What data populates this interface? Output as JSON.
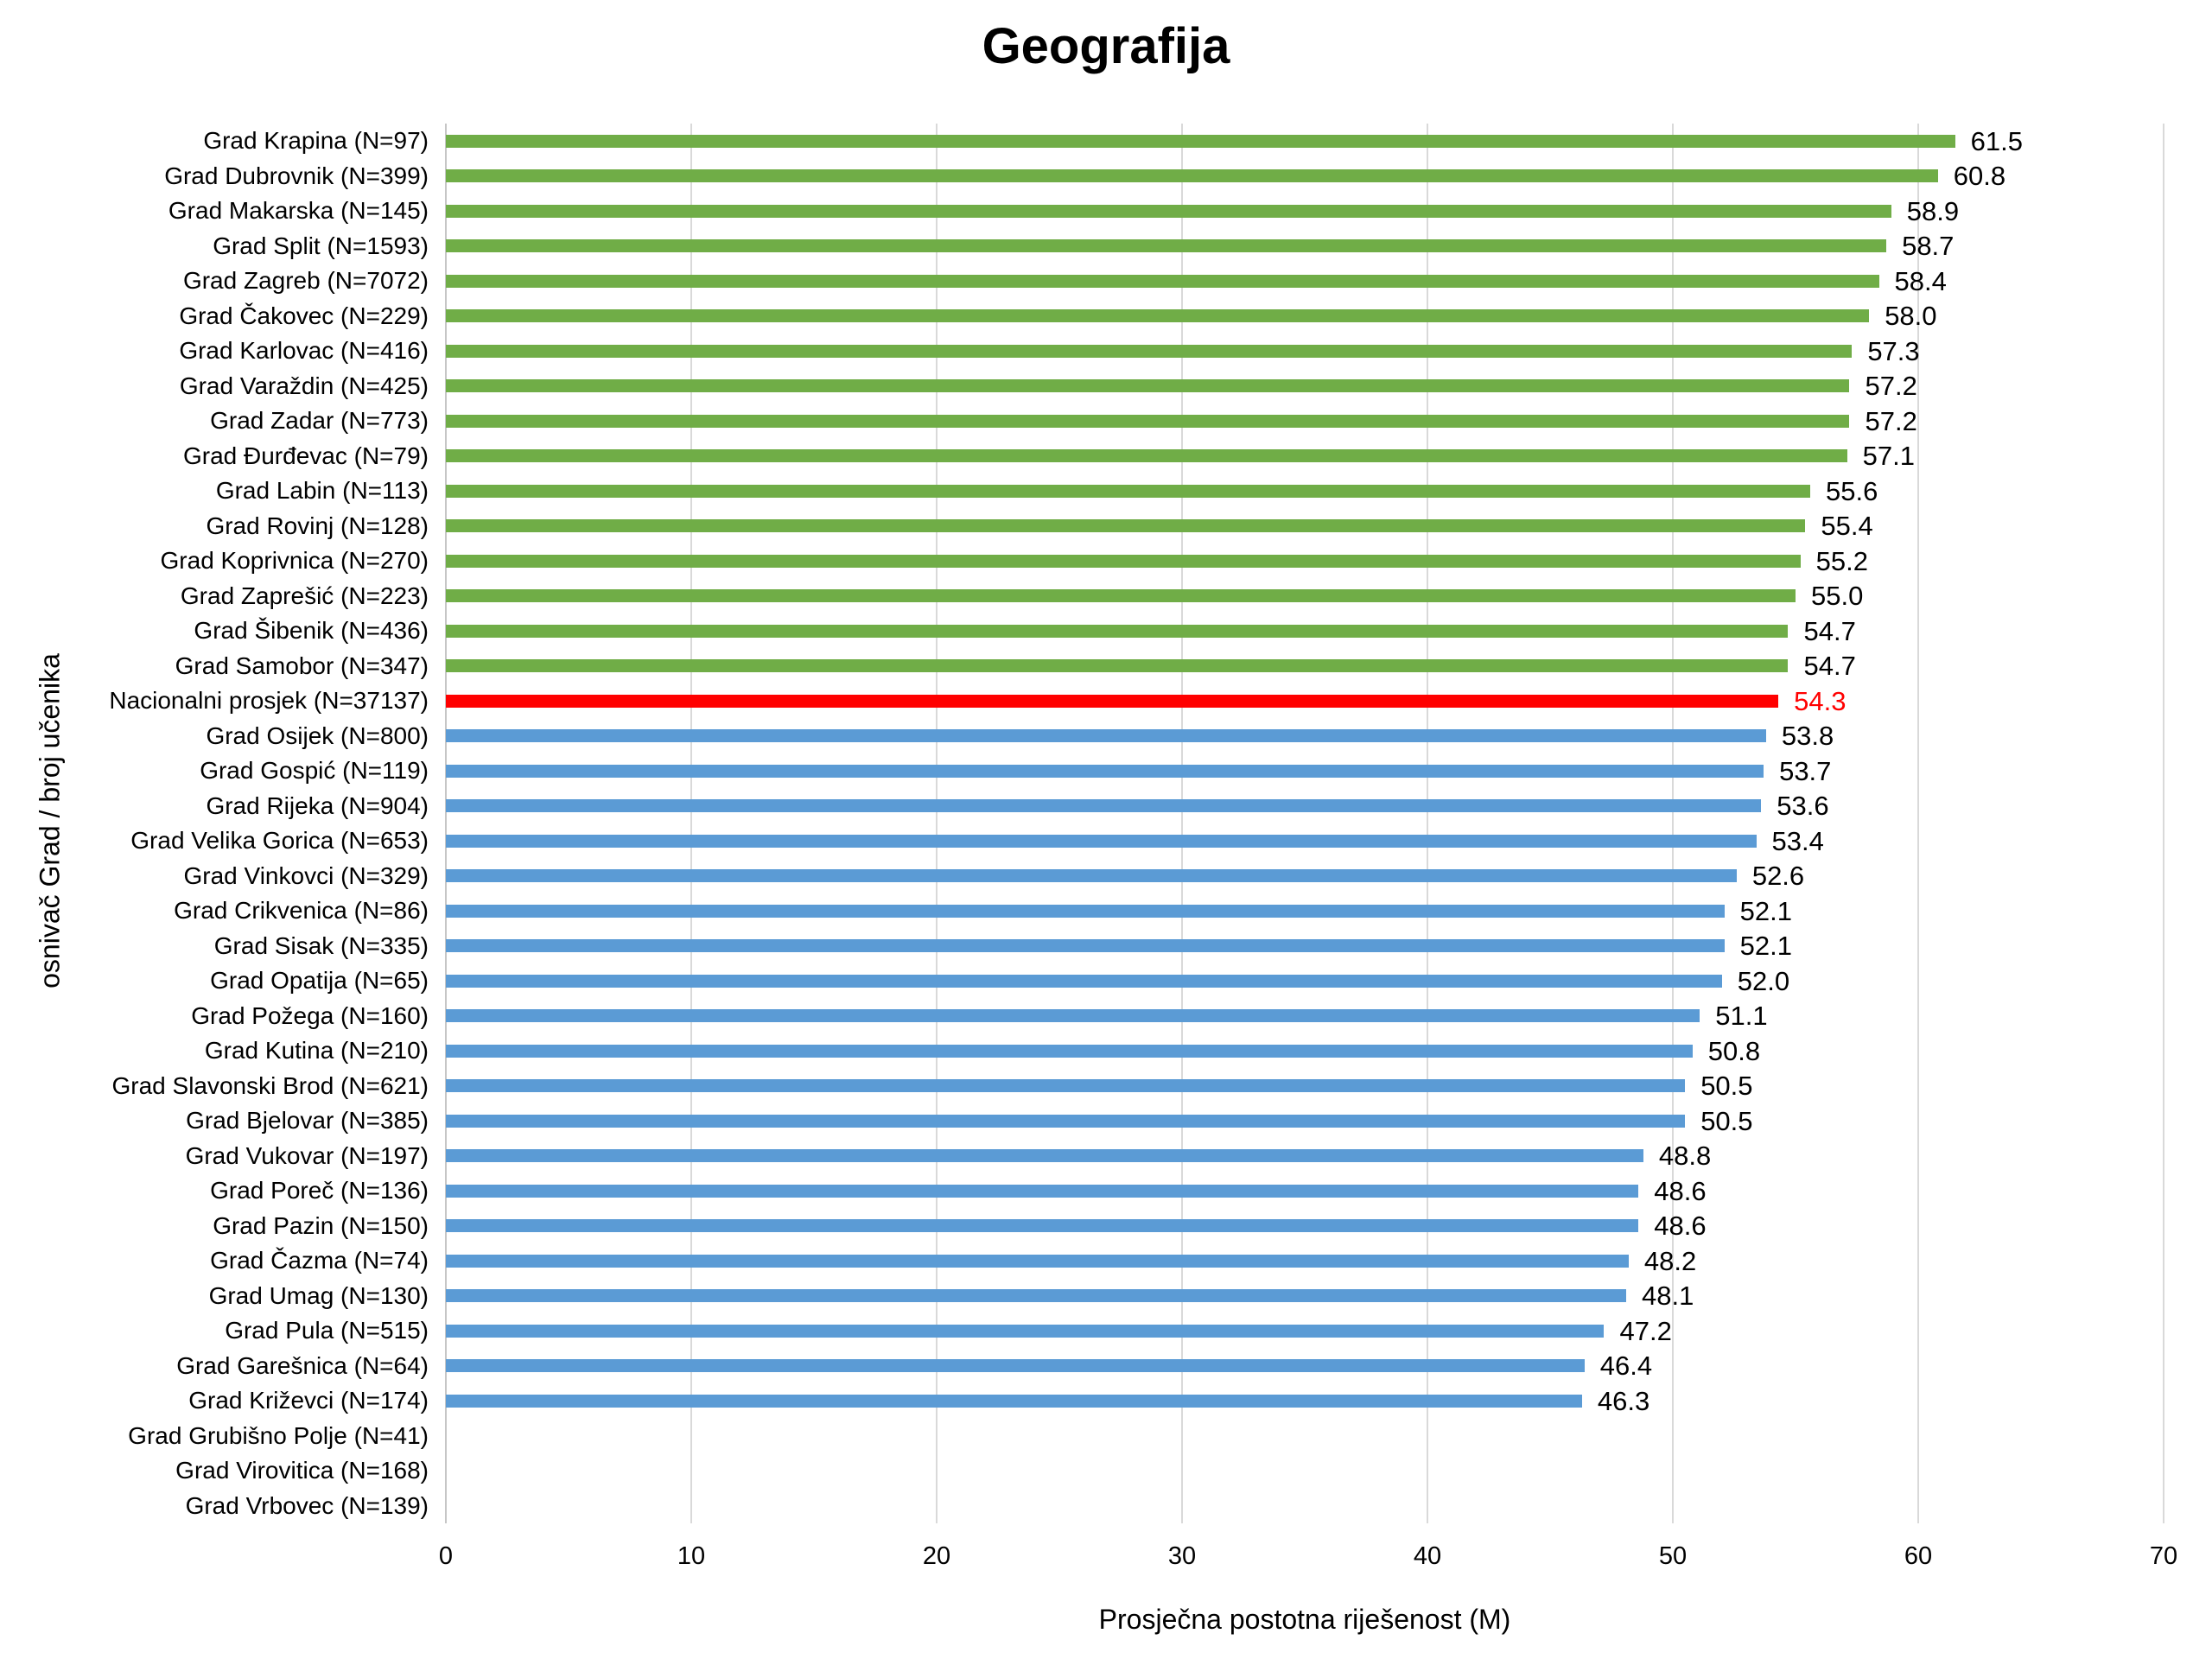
{
  "title": "Geografija",
  "chart_data": {
    "type": "bar",
    "orientation": "horizontal",
    "title": "Geografija",
    "xlabel": "Prosječna postotna riješenost (M)",
    "ylabel": "osnivač Grad / broj učenika",
    "xlim": [
      0,
      70
    ],
    "xticks": [
      0,
      10,
      20,
      30,
      40,
      50,
      60,
      70
    ],
    "grid": true,
    "legend": "none",
    "palette": {
      "above": "#70AD47",
      "average": "#FF0000",
      "below": "#5B9BD5"
    },
    "bars": [
      {
        "label": "Grad Krapina (N=97)",
        "value": 61.5,
        "value_label": "61.5",
        "group": "above"
      },
      {
        "label": "Grad Dubrovnik (N=399)",
        "value": 60.8,
        "value_label": "60.8",
        "group": "above"
      },
      {
        "label": "Grad Makarska (N=145)",
        "value": 58.9,
        "value_label": "58.9",
        "group": "above"
      },
      {
        "label": "Grad Split (N=1593)",
        "value": 58.7,
        "value_label": "58.7",
        "group": "above"
      },
      {
        "label": "Grad Zagreb (N=7072)",
        "value": 58.4,
        "value_label": "58.4",
        "group": "above"
      },
      {
        "label": "Grad Čakovec (N=229)",
        "value": 58.0,
        "value_label": "58.0",
        "group": "above"
      },
      {
        "label": "Grad Karlovac (N=416)",
        "value": 57.3,
        "value_label": "57.3",
        "group": "above"
      },
      {
        "label": "Grad Varaždin (N=425)",
        "value": 57.2,
        "value_label": "57.2",
        "group": "above"
      },
      {
        "label": "Grad Zadar (N=773)",
        "value": 57.2,
        "value_label": "57.2",
        "group": "above"
      },
      {
        "label": "Grad Đurđevac (N=79)",
        "value": 57.1,
        "value_label": "57.1",
        "group": "above"
      },
      {
        "label": "Grad Labin (N=113)",
        "value": 55.6,
        "value_label": "55.6",
        "group": "above"
      },
      {
        "label": "Grad Rovinj (N=128)",
        "value": 55.4,
        "value_label": "55.4",
        "group": "above"
      },
      {
        "label": "Grad Koprivnica (N=270)",
        "value": 55.2,
        "value_label": "55.2",
        "group": "above"
      },
      {
        "label": "Grad Zaprešić (N=223)",
        "value": 55.0,
        "value_label": "55.0",
        "group": "above"
      },
      {
        "label": "Grad Šibenik (N=436)",
        "value": 54.7,
        "value_label": "54.7",
        "group": "above"
      },
      {
        "label": "Grad Samobor (N=347)",
        "value": 54.7,
        "value_label": "54.7",
        "group": "above"
      },
      {
        "label": "Nacionalni prosjek (N=37137)",
        "value": 54.3,
        "value_label": "54.3",
        "group": "average"
      },
      {
        "label": "Grad Osijek (N=800)",
        "value": 53.8,
        "value_label": "53.8",
        "group": "below"
      },
      {
        "label": "Grad Gospić (N=119)",
        "value": 53.7,
        "value_label": "53.7",
        "group": "below"
      },
      {
        "label": "Grad Rijeka (N=904)",
        "value": 53.6,
        "value_label": "53.6",
        "group": "below"
      },
      {
        "label": "Grad Velika Gorica (N=653)",
        "value": 53.4,
        "value_label": "53.4",
        "group": "below"
      },
      {
        "label": "Grad Vinkovci (N=329)",
        "value": 52.6,
        "value_label": "52.6",
        "group": "below"
      },
      {
        "label": "Grad Crikvenica (N=86)",
        "value": 52.1,
        "value_label": "52.1",
        "group": "below"
      },
      {
        "label": "Grad Sisak (N=335)",
        "value": 52.1,
        "value_label": "52.1",
        "group": "below"
      },
      {
        "label": "Grad Opatija (N=65)",
        "value": 52.0,
        "value_label": "52.0",
        "group": "below"
      },
      {
        "label": "Grad Požega (N=160)",
        "value": 51.1,
        "value_label": "51.1",
        "group": "below"
      },
      {
        "label": "Grad Kutina (N=210)",
        "value": 50.8,
        "value_label": "50.8",
        "group": "below"
      },
      {
        "label": "Grad Slavonski Brod (N=621)",
        "value": 50.5,
        "value_label": "50.5",
        "group": "below"
      },
      {
        "label": "Grad Bjelovar (N=385)",
        "value": 50.5,
        "value_label": "50.5",
        "group": "below"
      },
      {
        "label": "Grad Vukovar (N=197)",
        "value": 48.8,
        "value_label": "48.8",
        "group": "below"
      },
      {
        "label": "Grad Poreč (N=136)",
        "value": 48.6,
        "value_label": "48.6",
        "group": "below"
      },
      {
        "label": "Grad Pazin (N=150)",
        "value": 48.6,
        "value_label": "48.6",
        "group": "below"
      },
      {
        "label": "Grad Čazma (N=74)",
        "value": 48.2,
        "value_label": "48.2",
        "group": "below"
      },
      {
        "label": "Grad Umag (N=130)",
        "value": 48.1,
        "value_label": "48.1",
        "group": "below"
      },
      {
        "label": "Grad Pula (N=515)",
        "value": 47.2,
        "value_label": "47.2",
        "group": "below"
      },
      {
        "label": "Grad Garešnica (N=64)",
        "value": 46.4,
        "value_label": "46.4",
        "group": "below"
      },
      {
        "label": "Grad Križevci (N=174)",
        "value": 46.3,
        "value_label": "46.3",
        "group": "below"
      },
      {
        "label": "Grad Grubišno Polje (N=41)",
        "value": null,
        "value_label": "",
        "group": "below"
      },
      {
        "label": "Grad Virovitica (N=168)",
        "value": null,
        "value_label": "",
        "group": "below"
      },
      {
        "label": "Grad Vrbovec (N=139)",
        "value": null,
        "value_label": "",
        "group": "below"
      }
    ]
  }
}
